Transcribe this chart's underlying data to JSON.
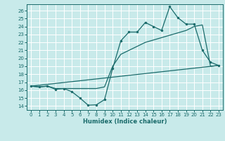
{
  "xlabel": "Humidex (Indice chaleur)",
  "bg_color": "#c8eaea",
  "line_color": "#1a6b6b",
  "grid_color": "#ffffff",
  "xlim": [
    -0.5,
    23.5
  ],
  "ylim": [
    13.5,
    26.8
  ],
  "yticks": [
    14,
    15,
    16,
    17,
    18,
    19,
    20,
    21,
    22,
    23,
    24,
    25,
    26
  ],
  "xticks": [
    0,
    1,
    2,
    3,
    4,
    5,
    6,
    7,
    8,
    9,
    10,
    11,
    12,
    13,
    14,
    15,
    16,
    17,
    18,
    19,
    20,
    21,
    22,
    23
  ],
  "line1_x": [
    0,
    1,
    2,
    3,
    4,
    5,
    6,
    7,
    8,
    9,
    10,
    11,
    12,
    13,
    14,
    15,
    16,
    17,
    18,
    19,
    20,
    21,
    22,
    23
  ],
  "line1_y": [
    16.5,
    16.4,
    16.5,
    16.1,
    16.2,
    15.8,
    15.0,
    14.1,
    14.15,
    14.8,
    18.7,
    22.2,
    23.3,
    23.3,
    24.5,
    24.0,
    23.5,
    26.5,
    25.1,
    24.3,
    24.3,
    21.0,
    19.5,
    19.1
  ],
  "line2_x": [
    0,
    1,
    2,
    3,
    4,
    5,
    6,
    7,
    8,
    9,
    10,
    11,
    12,
    13,
    14,
    15,
    16,
    17,
    18,
    19,
    20,
    21,
    22,
    23
  ],
  "line2_y": [
    16.5,
    16.4,
    16.5,
    16.2,
    16.2,
    16.2,
    16.2,
    16.2,
    16.2,
    16.4,
    19.0,
    20.5,
    21.0,
    21.5,
    22.0,
    22.3,
    22.6,
    22.9,
    23.2,
    23.5,
    24.0,
    24.2,
    19.0,
    19.1
  ],
  "line3_x": [
    0,
    23
  ],
  "line3_y": [
    16.5,
    19.1
  ],
  "marker_size": 2.2,
  "linewidth": 0.9
}
